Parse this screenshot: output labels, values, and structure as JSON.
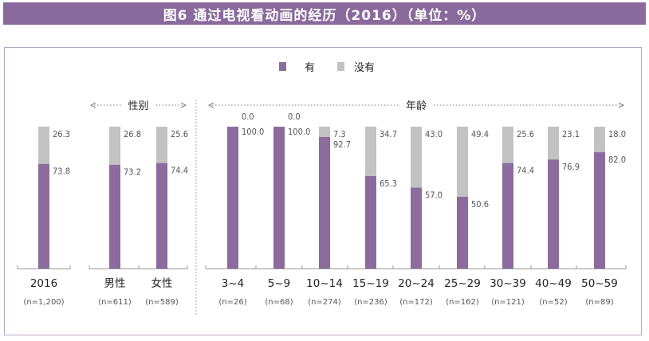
{
  "title": "图6  通过电视看动画的经历（2016）（单位：%）",
  "legend": [
    "有",
    "没有"
  ],
  "groups": [
    {
      "label": "性别",
      "from": 1,
      "to": 2
    },
    {
      "label": "年龄",
      "from": 3,
      "to": 11
    }
  ],
  "colors": {
    "yes": "#8c6b9e",
    "no": "#c2c2c2",
    "title_bg": "#8a6a9c",
    "frame": "#b8a6c4"
  },
  "chart_data": {
    "type": "bar",
    "stacked": true,
    "title": "图6  通过电视看动画的经历（2016）（单位：%）",
    "categories": [
      "2016",
      "男性",
      "女性",
      "3~4",
      "5~9",
      "10~14",
      "15~19",
      "20~24",
      "25~29",
      "30~39",
      "40~49",
      "50~59"
    ],
    "sample_sizes": [
      "(n=1,200)",
      "(n=611)",
      "(n=589)",
      "(n=26)",
      "(n=68)",
      "(n=274)",
      "(n=236)",
      "(n=172)",
      "(n=162)",
      "(n=121)",
      "(n=52)",
      "(n=89)"
    ],
    "series": [
      {
        "name": "有",
        "values": [
          73.8,
          73.2,
          74.4,
          100.0,
          100.0,
          92.7,
          65.3,
          57.0,
          50.6,
          74.4,
          76.9,
          82.0
        ]
      },
      {
        "name": "没有",
        "values": [
          26.3,
          26.8,
          25.6,
          0.0,
          0.0,
          7.3,
          34.7,
          43.0,
          49.4,
          25.6,
          23.1,
          18.0
        ]
      }
    ],
    "value_labels_yes": [
      "73.8",
      "73.2",
      "74.4",
      "100.0",
      "100.0",
      "92.7",
      "65.3",
      "57.0",
      "50.6",
      "74.4",
      "76.9",
      "82.0"
    ],
    "value_labels_no": [
      "26.3",
      "26.8",
      "25.6",
      "0.0",
      "0.0",
      "7.3",
      "34.7",
      "43.0",
      "49.4",
      "25.6",
      "23.1",
      "18.0"
    ],
    "ylim": [
      0,
      100
    ],
    "legend_position": "top-center",
    "grid": false
  }
}
